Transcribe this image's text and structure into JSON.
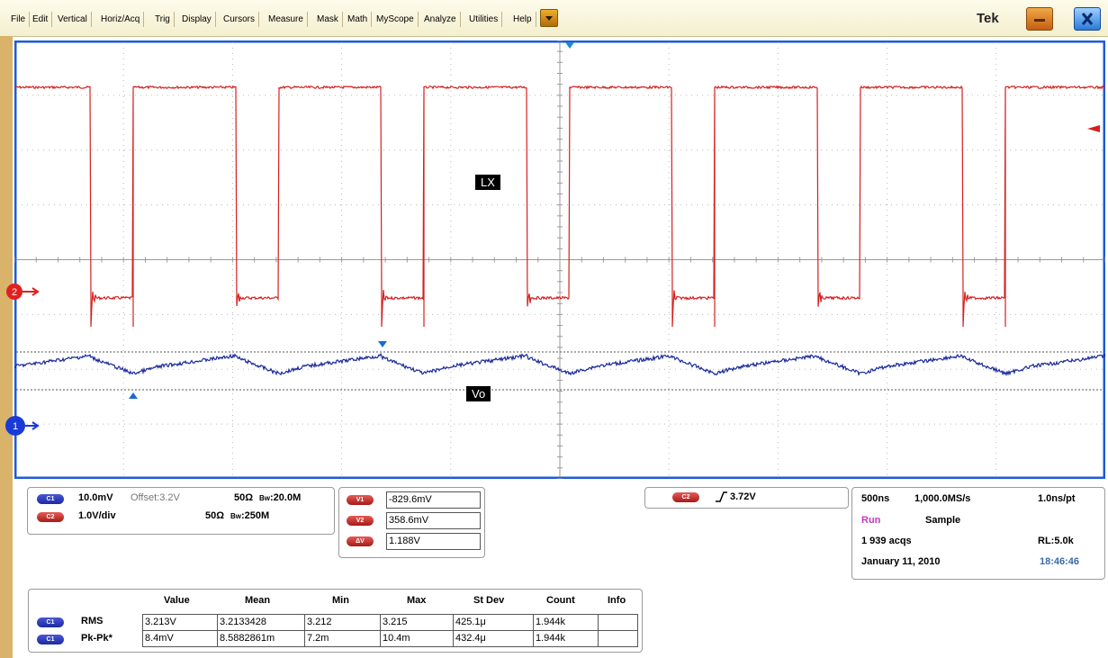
{
  "menubar": {
    "items": [
      "File",
      "Edit",
      "Vertical",
      "Horiz/Acq",
      "Trig",
      "Display",
      "Cursors",
      "Measure",
      "Mask",
      "Math",
      "MyScope",
      "Analyze",
      "Utilities",
      "Help"
    ],
    "brand": "Tek"
  },
  "waveform": {
    "label_lx": "LX",
    "label_vo": "Vo",
    "ch2_marker": "2",
    "ch1_marker": "1",
    "ch2_color": "#d42020",
    "ch1_color": "#1a2a9a",
    "grid_color": "#b9b9b9",
    "frame_color": "#1e5bd8"
  },
  "channel_panel": {
    "ch1": {
      "pill": "C1",
      "scale": "10.0mV",
      "offset": "Offset:3.2V",
      "impedance": "50Ω",
      "bw": "20.0M"
    },
    "ch2": {
      "pill": "C2",
      "scale": "1.0V/div",
      "impedance": "50Ω",
      "bw": "250M"
    }
  },
  "cursor_panel": {
    "rows": [
      {
        "pill": "V1",
        "value": "-829.6mV"
      },
      {
        "pill": "V2",
        "value": "358.6mV"
      },
      {
        "pill": "ΔV",
        "value": "1.188V"
      }
    ]
  },
  "trigger_panel": {
    "pill": "C2",
    "level": "3.72V"
  },
  "acq_panel": {
    "timebase": "500ns",
    "sample_rate": "1,000.0MS/s",
    "resolution": "1.0ns/pt",
    "state": "Run",
    "mode": "Sample",
    "acqs": "1 939 acqs",
    "record_length": "RL:5.0k",
    "date": "January 11, 2010",
    "time": "18:46:46"
  },
  "measurements": {
    "headers": [
      "Value",
      "Mean",
      "Min",
      "Max",
      "St Dev",
      "Count",
      "Info"
    ],
    "rows": [
      {
        "pill": "C1",
        "name": "RMS",
        "value": "3.213V",
        "mean": "3.2133428",
        "min": "3.212",
        "max": "3.215",
        "stdev": "425.1μ",
        "count": "1.944k",
        "info": ""
      },
      {
        "pill": "C1",
        "name": "Pk-Pk*",
        "value": "8.4mV",
        "mean": "8.5882861m",
        "min": "7.2m",
        "max": "10.4m",
        "stdev": "432.4μ",
        "count": "1.944k",
        "info": ""
      }
    ]
  }
}
